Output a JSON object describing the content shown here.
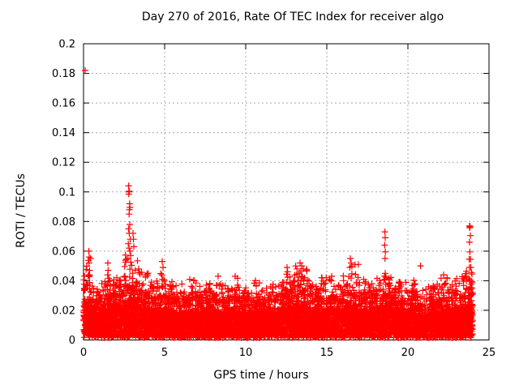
{
  "chart_data": {
    "type": "scatter",
    "title": "Day 270 of 2016, Rate Of TEC Index for receiver algo",
    "xlabel": "GPS time / hours",
    "ylabel": "ROTI / TECUs",
    "xlim": [
      0,
      25
    ],
    "ylim": [
      0,
      0.2
    ],
    "xticks": [
      0,
      5,
      10,
      15,
      20,
      25
    ],
    "yticks": [
      0,
      0.02,
      0.04,
      0.06,
      0.08,
      0.1,
      0.12,
      0.14,
      0.16,
      0.18,
      0.2
    ],
    "grid": true,
    "grid_color": "#a9a9a9",
    "legend": "none",
    "marker": "plus",
    "marker_color": "#ff0000",
    "data_span_hours": [
      0,
      24
    ],
    "description": "Dense noise band of ROTI values roughly 0.002-0.035 TECU across all 24 hours, with sporadic spikes; band summarized below as half-hour bins [bin_start_hour, dense_band_top, sparse_envelope_top] plus explicit outlier points.",
    "band_bin_width": 0.5,
    "band_y_floor": 0.0015,
    "band_bins": [
      [
        0.0,
        0.034,
        0.058
      ],
      [
        0.5,
        0.026,
        0.038
      ],
      [
        1.0,
        0.028,
        0.04
      ],
      [
        1.5,
        0.03,
        0.046
      ],
      [
        2.0,
        0.03,
        0.042
      ],
      [
        2.5,
        0.036,
        0.058
      ],
      [
        3.0,
        0.034,
        0.056
      ],
      [
        3.5,
        0.03,
        0.046
      ],
      [
        4.0,
        0.028,
        0.04
      ],
      [
        4.5,
        0.029,
        0.047
      ],
      [
        5.0,
        0.028,
        0.04
      ],
      [
        5.5,
        0.026,
        0.037
      ],
      [
        6.0,
        0.026,
        0.039
      ],
      [
        6.5,
        0.027,
        0.041
      ],
      [
        7.0,
        0.026,
        0.037
      ],
      [
        7.5,
        0.028,
        0.039
      ],
      [
        8.0,
        0.026,
        0.042
      ],
      [
        8.5,
        0.026,
        0.037
      ],
      [
        9.0,
        0.027,
        0.042
      ],
      [
        9.5,
        0.026,
        0.037
      ],
      [
        10.0,
        0.024,
        0.036
      ],
      [
        10.5,
        0.025,
        0.039
      ],
      [
        11.0,
        0.024,
        0.036
      ],
      [
        11.5,
        0.026,
        0.038
      ],
      [
        12.0,
        0.029,
        0.042
      ],
      [
        12.5,
        0.031,
        0.047
      ],
      [
        13.0,
        0.033,
        0.05
      ],
      [
        13.5,
        0.033,
        0.048
      ],
      [
        14.0,
        0.028,
        0.041
      ],
      [
        14.5,
        0.028,
        0.043
      ],
      [
        15.0,
        0.028,
        0.042
      ],
      [
        15.5,
        0.026,
        0.039
      ],
      [
        16.0,
        0.03,
        0.049
      ],
      [
        16.5,
        0.03,
        0.052
      ],
      [
        17.0,
        0.028,
        0.042
      ],
      [
        17.5,
        0.028,
        0.039
      ],
      [
        18.0,
        0.028,
        0.042
      ],
      [
        18.5,
        0.03,
        0.044
      ],
      [
        19.0,
        0.028,
        0.041
      ],
      [
        19.5,
        0.026,
        0.039
      ],
      [
        20.0,
        0.028,
        0.042
      ],
      [
        20.5,
        0.022,
        0.034
      ],
      [
        21.0,
        0.024,
        0.036
      ],
      [
        21.5,
        0.026,
        0.04
      ],
      [
        22.0,
        0.026,
        0.042
      ],
      [
        22.5,
        0.028,
        0.04
      ],
      [
        23.0,
        0.028,
        0.043
      ],
      [
        23.5,
        0.034,
        0.047
      ]
    ],
    "outliers": [
      [
        0.1,
        0.182
      ],
      [
        0.33,
        0.06
      ],
      [
        0.35,
        0.056
      ],
      [
        0.34,
        0.052
      ],
      [
        0.37,
        0.047
      ],
      [
        0.32,
        0.044
      ],
      [
        1.5,
        0.052
      ],
      [
        1.52,
        0.047
      ],
      [
        1.49,
        0.044
      ],
      [
        2.78,
        0.104
      ],
      [
        2.8,
        0.1
      ],
      [
        2.82,
        0.1005
      ],
      [
        2.79,
        0.0985
      ],
      [
        2.84,
        0.092
      ],
      [
        2.86,
        0.0895
      ],
      [
        2.83,
        0.088
      ],
      [
        2.81,
        0.085
      ],
      [
        2.85,
        0.078
      ],
      [
        2.78,
        0.075
      ],
      [
        2.82,
        0.072
      ],
      [
        2.88,
        0.068
      ],
      [
        2.76,
        0.065
      ],
      [
        2.81,
        0.062
      ],
      [
        2.86,
        0.06
      ],
      [
        2.9,
        0.057
      ],
      [
        2.74,
        0.055
      ],
      [
        3.05,
        0.072
      ],
      [
        3.08,
        0.068
      ],
      [
        3.1,
        0.063
      ],
      [
        3.4,
        0.048
      ],
      [
        3.45,
        0.0455
      ],
      [
        4.85,
        0.053
      ],
      [
        4.9,
        0.049
      ],
      [
        6.55,
        0.041
      ],
      [
        8.3,
        0.043
      ],
      [
        9.35,
        0.043
      ],
      [
        10.6,
        0.04
      ],
      [
        12.55,
        0.049
      ],
      [
        12.58,
        0.046
      ],
      [
        13.35,
        0.052
      ],
      [
        13.45,
        0.05
      ],
      [
        13.55,
        0.048
      ],
      [
        13.4,
        0.0465
      ],
      [
        14.7,
        0.042
      ],
      [
        15.3,
        0.043
      ],
      [
        16.45,
        0.055
      ],
      [
        16.5,
        0.052
      ],
      [
        16.42,
        0.049
      ],
      [
        18.58,
        0.073
      ],
      [
        18.6,
        0.069
      ],
      [
        18.57,
        0.064
      ],
      [
        18.61,
        0.0595
      ],
      [
        18.59,
        0.055
      ],
      [
        18.6,
        0.045
      ],
      [
        18.58,
        0.041
      ],
      [
        20.78,
        0.05
      ],
      [
        22.2,
        0.044
      ],
      [
        23.8,
        0.077
      ],
      [
        23.83,
        0.0765
      ],
      [
        23.81,
        0.0758
      ],
      [
        23.85,
        0.0705
      ],
      [
        23.8,
        0.066
      ],
      [
        23.82,
        0.0595
      ],
      [
        23.78,
        0.0545
      ],
      [
        23.86,
        0.0545
      ],
      [
        23.8,
        0.049
      ],
      [
        23.88,
        0.049
      ],
      [
        23.83,
        0.0405
      ]
    ]
  }
}
